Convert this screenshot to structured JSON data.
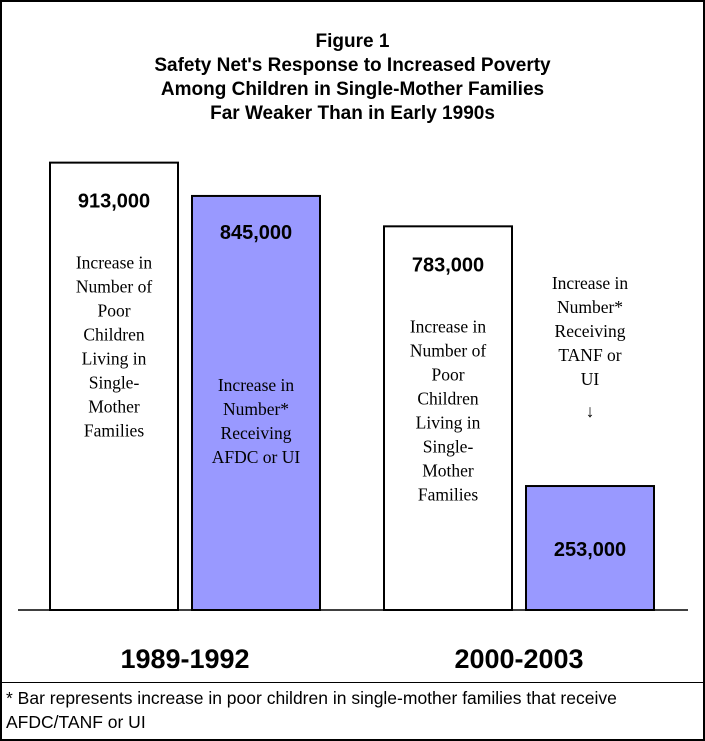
{
  "title_lines": [
    "Figure 1",
    "Safety Net's Response to Increased Poverty",
    "Among Children in Single-Mother Families",
    "Far Weaker Than in Early 1990s"
  ],
  "footnote": "* Bar represents increase in poor children in single-mother families that receive AFDC/TANF or UI",
  "colors": {
    "poor_children_bar": "#ffffff",
    "receiving_bar": "#9999ff",
    "outline": "#000000"
  },
  "chart_data": {
    "type": "bar",
    "categories": [
      "1989-1992",
      "2000-2003"
    ],
    "series": [
      {
        "values": [
          913000,
          783000
        ],
        "value_labels": [
          "913,000",
          "783,000"
        ],
        "descriptions": [
          [
            "Increase in",
            "Number of",
            "Poor",
            "Children",
            "Living in",
            "Single-",
            "Mother",
            "Families"
          ],
          [
            "Increase in",
            "Number of",
            "Poor",
            "Children",
            "Living in",
            "Single-",
            "Mother",
            "Families"
          ]
        ]
      },
      {
        "values": [
          845000,
          253000
        ],
        "value_labels": [
          "845,000",
          "253,000"
        ],
        "descriptions": [
          [
            "Increase in",
            "Number*",
            "Receiving",
            "AFDC or UI"
          ],
          [
            "Increase in",
            "Number*",
            "Receiving",
            "TANF or",
            "UI",
            "↓"
          ]
        ]
      }
    ],
    "ylim": [
      0,
      1000000
    ],
    "grid": false,
    "legend": "none"
  }
}
